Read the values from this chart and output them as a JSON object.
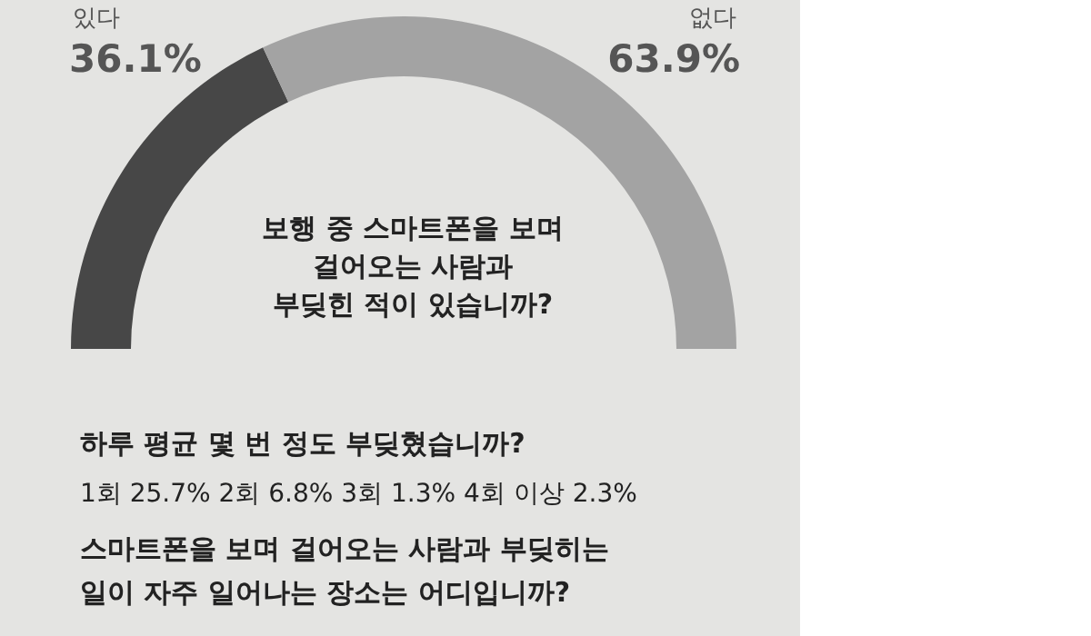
{
  "chart_data": {
    "type": "donut",
    "title": "보행 중 스마트폰을 보며\n걸어오는 사람과\n부딪힌 적이 있습니까?",
    "categories": [
      "있다",
      "없다"
    ],
    "values": [
      36.1,
      63.9
    ],
    "colors": [
      "#474747",
      "#a3a3a3"
    ],
    "value_labels": [
      "36.1%",
      "63.9%"
    ],
    "annotations": [
      "하루 평균 몇 번 정도 부딪혔습니까?",
      "1회 25.7% 2회 6.8% 3회 1.3% 4회 이상 2.3%",
      "스마트폰을 보며 걸어오는 사람과 부딪히는\n일이 자주 일어나는 장소는 어디입니까?"
    ],
    "legend": false
  }
}
